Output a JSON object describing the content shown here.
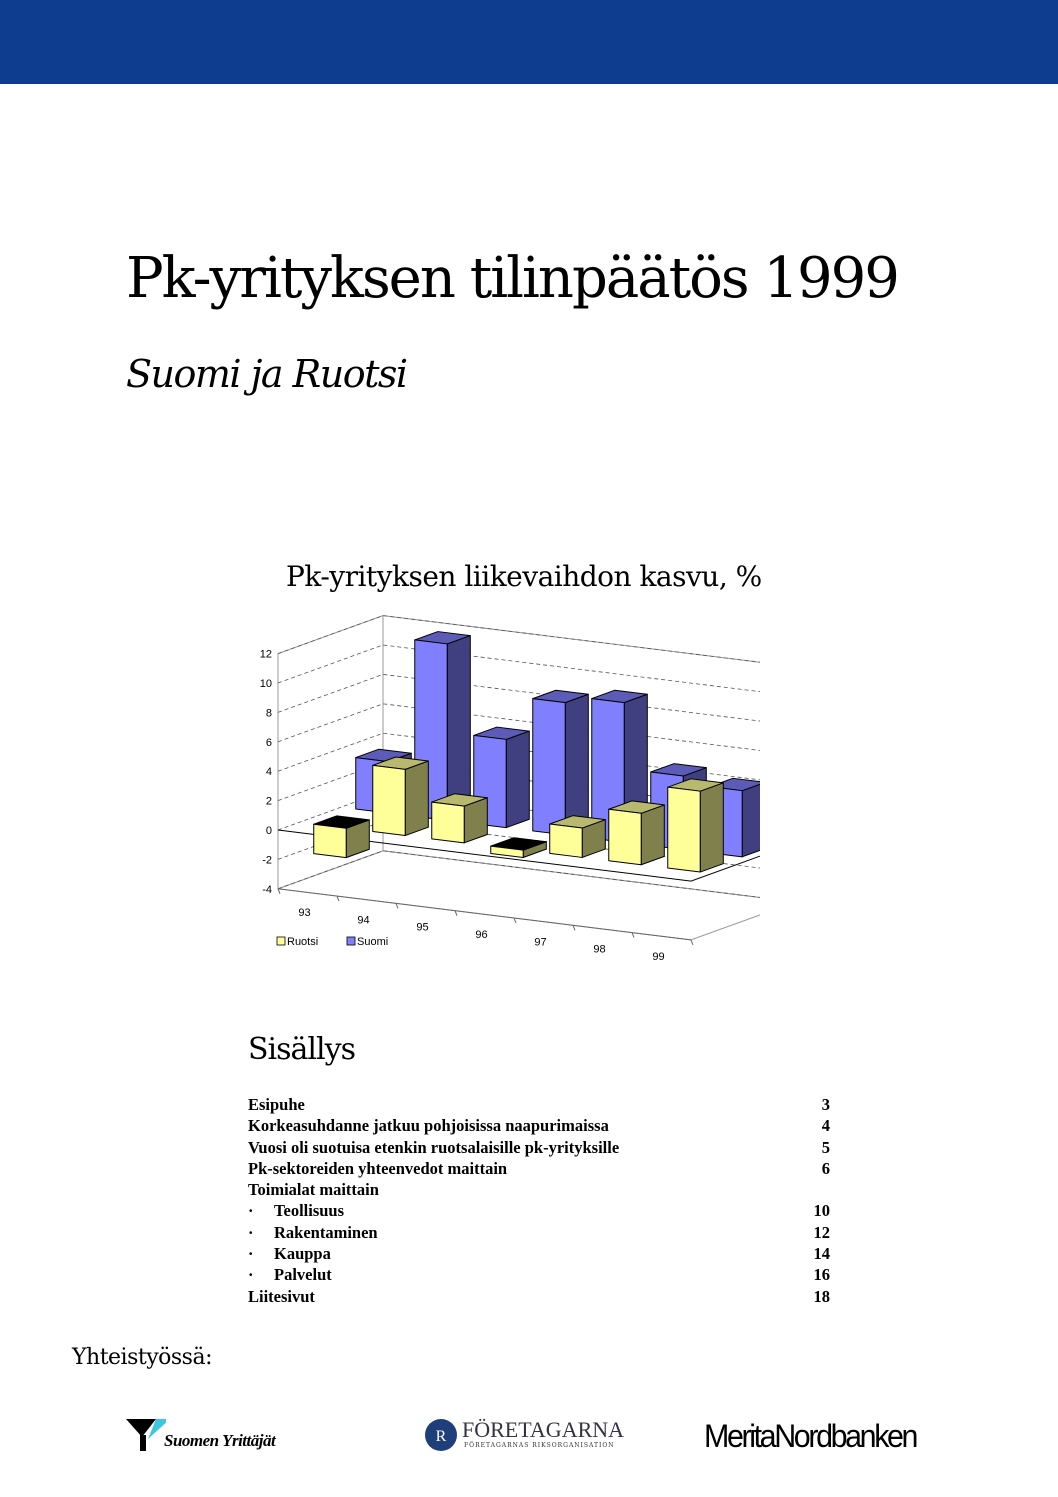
{
  "header": {
    "band_color": "#0e3d8f"
  },
  "title": "Pk-yrityksen tilinpäätös 1999",
  "subtitle": "Suomi ja Ruotsi",
  "chart_data": {
    "type": "bar",
    "style": "3d-clustered-depth",
    "title": "Pk-yrityksen liikevaihdon kasvu, %",
    "categories": [
      "93",
      "94",
      "95",
      "96",
      "97",
      "98",
      "99"
    ],
    "series": [
      {
        "name": "Ruotsi",
        "color": "#ffff99",
        "values": [
          -2.0,
          4.5,
          2.5,
          -0.5,
          2.0,
          3.5,
          5.5
        ]
      },
      {
        "name": "Suomi",
        "color": "#8080ff",
        "values": [
          3.5,
          12.0,
          6.0,
          9.0,
          9.5,
          5.0,
          4.5
        ]
      }
    ],
    "ylim": [
      -4,
      12
    ],
    "yticks": [
      "-4",
      "-2",
      "0",
      "2",
      "4",
      "6",
      "8",
      "10",
      "12"
    ],
    "grid": true,
    "legend": "bottom-left"
  },
  "toc": {
    "title": "Sisällys",
    "items": [
      {
        "label": "Esipuhe",
        "page": "3",
        "bullet": ""
      },
      {
        "label": "Korkeasuhdanne jatkuu pohjoisissa naapurimaissa",
        "page": "4",
        "bullet": ""
      },
      {
        "label": "Vuosi oli suotuisa etenkin ruotsalaisille pk-yrityksille",
        "page": "5",
        "bullet": ""
      },
      {
        "label": "Pk-sektoreiden yhteenvedot maittain",
        "page": "6",
        "bullet": ""
      },
      {
        "label": "Toimialat maittain",
        "page": "",
        "bullet": ""
      },
      {
        "label": "Teollisuus",
        "page": "10",
        "bullet": "·"
      },
      {
        "label": "Rakentaminen",
        "page": "12",
        "bullet": "·"
      },
      {
        "label": "Kauppa",
        "page": "14",
        "bullet": "·"
      },
      {
        "label": "Palvelut",
        "page": "16",
        "bullet": "·"
      },
      {
        "label": "Liitesivut",
        "page": "18",
        "bullet": ""
      }
    ]
  },
  "partners": {
    "label": "Yhteistyössä:",
    "logos": [
      {
        "name": "Suomen Yrittäjät"
      },
      {
        "name": "FÖRETAGARNA",
        "tagline": "FÖRETAGARNAS RIKSORGANISATION"
      },
      {
        "name": "MeritaNordbanken"
      }
    ]
  }
}
